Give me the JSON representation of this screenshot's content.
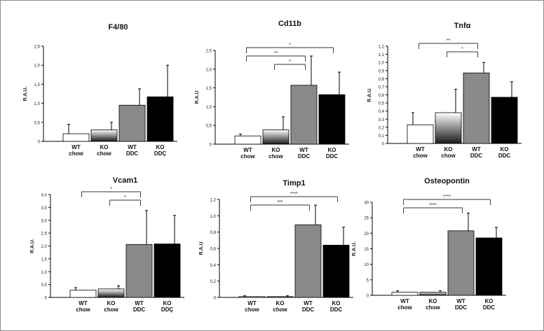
{
  "categories": [
    [
      "WT",
      "chow"
    ],
    [
      "KO",
      "chow"
    ],
    [
      "WT",
      "DDC"
    ],
    [
      "KO",
      "DDÇ"
    ]
  ],
  "colors": {
    "wt_chow": "#ffffff",
    "ko_chow_top": "#ffffff",
    "ko_chow_bottom": "#1a1a1a",
    "wt_ddc": "#8a8a8a",
    "ko_ddc": "#000000",
    "axis": "#000000",
    "bracket": "#333333"
  },
  "chart_data": [
    {
      "type": "bar",
      "title": "F4/80",
      "ylabel": "R.A.U.",
      "ylim": [
        0,
        2.5
      ],
      "yticks": [
        "0",
        "0,5",
        "1,0",
        "1,5",
        "2,0",
        "2,5"
      ],
      "categories": [
        "WT chow",
        "KO chow",
        "WT DDC",
        "KO DDÇ"
      ],
      "values": [
        0.2,
        0.3,
        0.95,
        1.17
      ],
      "errors": [
        0.25,
        0.2,
        0.43,
        0.83
      ],
      "brackets": []
    },
    {
      "type": "bar",
      "title": "Cd11b",
      "ylabel": "R.A.U",
      "ylim": [
        0,
        2.5
      ],
      "yticks": [
        "0",
        "0,5",
        "1,0",
        "1,5",
        "2,0",
        "2,5"
      ],
      "categories": [
        "WT chow",
        "KO chow",
        "WT DDC",
        "KO DDC"
      ],
      "values": [
        0.22,
        0.38,
        1.57,
        1.32
      ],
      "errors": [
        0.05,
        0.35,
        0.78,
        0.6
      ],
      "brackets": [
        {
          "from": 0,
          "to": 3,
          "label": "*"
        },
        {
          "from": 0,
          "to": 2,
          "label": "**"
        },
        {
          "from": 1,
          "to": 2,
          "label": "*"
        }
      ]
    },
    {
      "type": "bar",
      "title": "Tnfα",
      "ylabel": "R.A.U.",
      "ylim": [
        0,
        1.2
      ],
      "yticks": [
        "0",
        "0,1",
        "0,2",
        "0,3",
        "0,4",
        "0,5",
        "0,6",
        "0,7",
        "0,8",
        "0,9",
        "1,0",
        "1,1",
        "1,2"
      ],
      "categories": [
        "WT chow",
        "KO chow",
        "WT DDC",
        "KO DDC"
      ],
      "values": [
        0.23,
        0.38,
        0.87,
        0.57
      ],
      "errors": [
        0.15,
        0.29,
        0.13,
        0.19
      ],
      "brackets": [
        {
          "from": 0,
          "to": 2,
          "label": "**"
        },
        {
          "from": 1,
          "to": 2,
          "label": "*"
        }
      ]
    },
    {
      "type": "bar",
      "title": "Vcam1",
      "ylabel": "R.A.U.",
      "ylim": [
        0,
        4.0
      ],
      "yticks": [
        "0",
        "0,5",
        "1,0",
        "1,5",
        "2,0",
        "2,5",
        "3,0",
        "3,5",
        "4,0"
      ],
      "categories": [
        "WT chow",
        "KO chow",
        "WT DDC",
        "KO DDÇ"
      ],
      "values": [
        0.28,
        0.33,
        2.06,
        2.08
      ],
      "errors": [
        0.1,
        0.12,
        1.32,
        1.11
      ],
      "brackets": [
        {
          "from": 0,
          "to": 2,
          "label": "*"
        },
        {
          "from": 1,
          "to": 2,
          "label": "*"
        }
      ]
    },
    {
      "type": "bar",
      "title": "Timp1",
      "ylabel": "R.A.U",
      "ylim": [
        0,
        1.2
      ],
      "yticks": [
        "0",
        "0,2",
        "0,4",
        "0,6",
        "0,8",
        "1,0",
        "1,2"
      ],
      "categories": [
        "WT chow",
        "KO chow",
        "WT DDC",
        "KO DDC"
      ],
      "values": [
        0.01,
        0.01,
        0.89,
        0.64
      ],
      "errors": [
        0.01,
        0.01,
        0.24,
        0.22
      ],
      "brackets": [
        {
          "from": 0,
          "to": 3,
          "label": "****"
        },
        {
          "from": 0,
          "to": 2,
          "label": "***"
        }
      ]
    },
    {
      "type": "bar",
      "title": "Osteopontin",
      "ylabel": "R.A.U.",
      "ylim": [
        0,
        30
      ],
      "yticks": [
        "0",
        "5",
        "10",
        "15",
        "20",
        "25",
        "30"
      ],
      "categories": [
        "WT chow",
        "KO chow",
        "WT DDC",
        "KO DDC"
      ],
      "values": [
        1.0,
        1.0,
        20.8,
        18.5
      ],
      "errors": [
        0.5,
        0.5,
        5.7,
        3.4
      ],
      "brackets": [
        {
          "from": 0,
          "to": 3,
          "label": "****"
        },
        {
          "from": 0,
          "to": 2,
          "label": "****"
        }
      ]
    }
  ]
}
